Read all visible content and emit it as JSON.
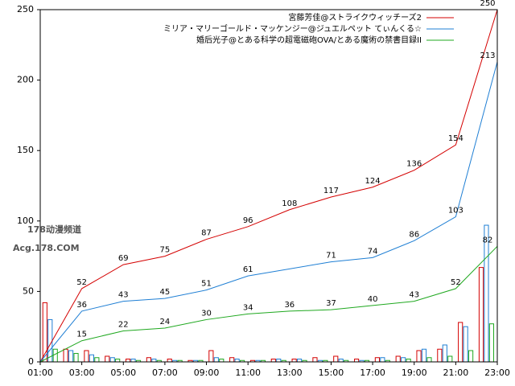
{
  "chart_data": {
    "type": "line",
    "xlim": [
      1,
      23
    ],
    "xticks": [
      {
        "value": 1,
        "label": "01:00"
      },
      {
        "value": 3,
        "label": "03:00"
      },
      {
        "value": 5,
        "label": "05:00"
      },
      {
        "value": 7,
        "label": "07:00"
      },
      {
        "value": 9,
        "label": "09:00"
      },
      {
        "value": 11,
        "label": "11:00"
      },
      {
        "value": 13,
        "label": "13:00"
      },
      {
        "value": 15,
        "label": "15:00"
      },
      {
        "value": 17,
        "label": "17:00"
      },
      {
        "value": 19,
        "label": "19:00"
      },
      {
        "value": 21,
        "label": "21:00"
      },
      {
        "value": 23,
        "label": "23:00"
      }
    ],
    "ylim": [
      0,
      250
    ],
    "yticks": [
      0,
      50,
      100,
      150,
      200,
      250
    ],
    "bar_x": [
      1,
      2,
      3,
      4,
      5,
      6,
      7,
      8,
      9,
      10,
      11,
      12,
      13,
      14,
      15,
      16,
      17,
      18,
      19,
      20,
      21,
      22
    ],
    "series": [
      {
        "name": "宮藤芳佳@ストライクウィッチーズ2",
        "color": "#d40000",
        "x": [
          1,
          3,
          5,
          7,
          9,
          11,
          13,
          15,
          17,
          19,
          21,
          23
        ],
        "values": [
          0,
          52,
          69,
          75,
          87,
          96,
          108,
          117,
          124,
          136,
          154,
          250
        ],
        "hourly": [
          42,
          9,
          8,
          4,
          2,
          3,
          2,
          1,
          8,
          3,
          1,
          2,
          2,
          3,
          4,
          2,
          3,
          4,
          8,
          9,
          28,
          67
        ]
      },
      {
        "name": "ミリア・マリーゴールド・マッケンジー@ジュエルペット てぃんくる☆",
        "color": "#1f7fd4",
        "x": [
          1,
          3,
          5,
          7,
          9,
          11,
          15,
          17,
          19,
          21,
          23
        ],
        "values": [
          0,
          36,
          43,
          45,
          51,
          61,
          71,
          74,
          86,
          103,
          213
        ],
        "hourly": [
          30,
          8,
          5,
          3,
          2,
          2,
          1,
          1,
          3,
          2,
          1,
          2,
          2,
          1,
          2,
          1,
          3,
          3,
          9,
          12,
          25,
          97
        ]
      },
      {
        "name": "婚后光子@とある科学の超電磁砲OVA/とある魔術の禁書目録II",
        "color": "#1fa81f",
        "x": [
          1,
          3,
          5,
          7,
          9,
          11,
          13,
          15,
          17,
          19,
          21,
          23
        ],
        "values": [
          0,
          15,
          22,
          24,
          30,
          34,
          36,
          37,
          40,
          43,
          52,
          82
        ],
        "hourly": [
          9,
          6,
          3,
          2,
          1,
          1,
          1,
          1,
          2,
          1,
          1,
          1,
          1,
          1,
          1,
          1,
          1,
          2,
          3,
          4,
          8,
          27
        ]
      }
    ],
    "watermark": [
      "178动漫频道",
      "Acg.178.COM"
    ]
  }
}
